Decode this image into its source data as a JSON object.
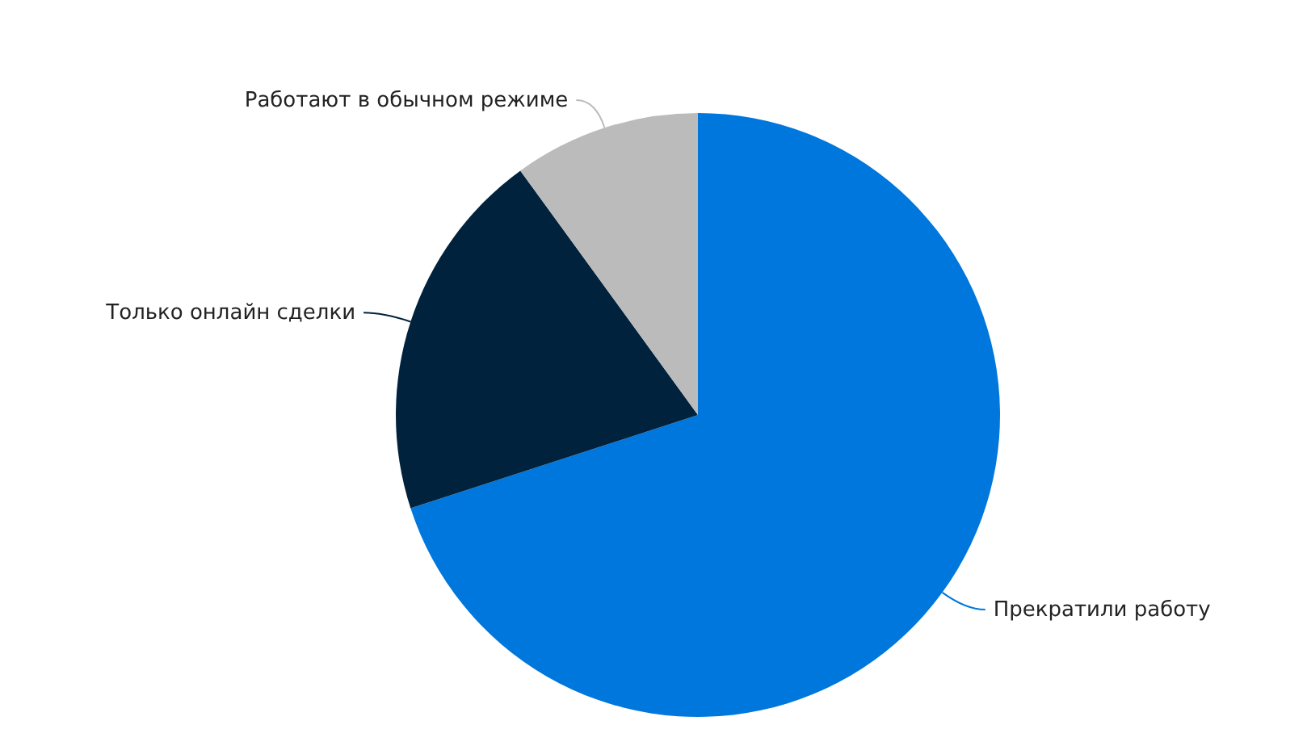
{
  "chart_data": {
    "type": "pie",
    "categories": [
      "Прекратили работу",
      "Только онлайн сделки",
      "Работают в обычном режиме"
    ],
    "values": [
      70,
      20,
      10
    ],
    "colors": [
      "#0077dd",
      "#00223d",
      "#bbbbbb"
    ],
    "legend": false
  }
}
